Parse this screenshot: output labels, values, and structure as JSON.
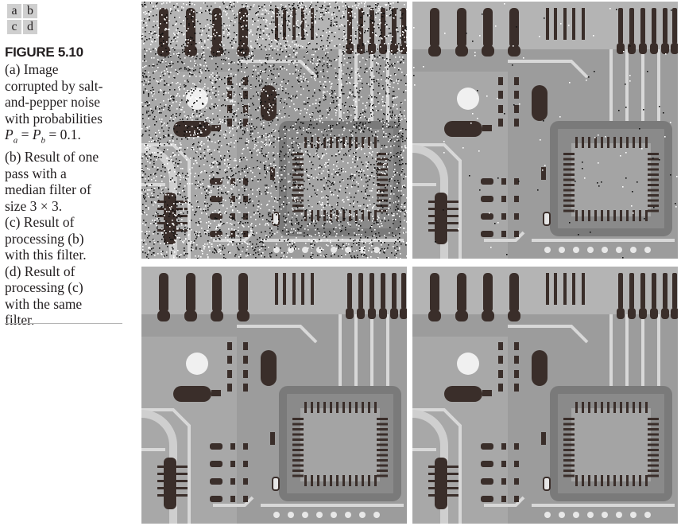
{
  "panel_key": [
    "a",
    "b",
    "c",
    "d"
  ],
  "figure": {
    "title": "FIGURE 5.10",
    "caption_lines": [
      "(a) Image",
      "corrupted by salt-",
      "and-pepper noise",
      "with probabilities",
      "P_a = P_b = 0.1.",
      "(b) Result of one",
      "pass with a",
      "median filter of",
      "size 3 × 3.",
      "(c) Result of",
      "processing (b)",
      "with this filter.",
      "(d) Result of",
      "processing (c)",
      "with the same",
      "filter."
    ]
  },
  "panels": [
    {
      "id": "a",
      "noise_fraction": 0.2
    },
    {
      "id": "b",
      "noise_fraction": 0.004
    },
    {
      "id": "c",
      "noise_fraction": 0.0
    },
    {
      "id": "d",
      "noise_fraction": 0.0
    }
  ],
  "colors": {
    "background": "#9c9c9c",
    "dark_component": "#3a2e2a",
    "light_trace": "#d8d8d8",
    "chip_border": "#7a7a7a"
  }
}
